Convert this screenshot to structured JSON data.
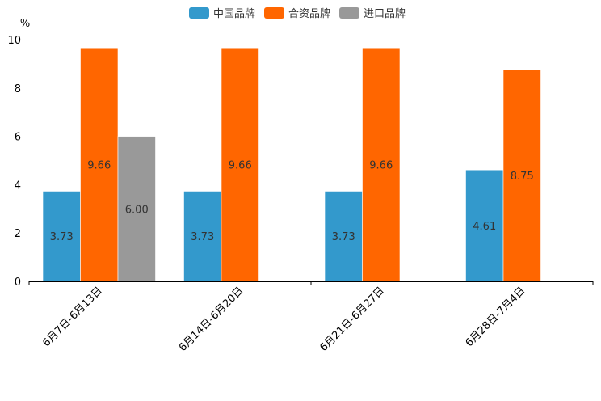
{
  "chart_data": {
    "type": "bar",
    "title": "",
    "xlabel": "",
    "ylabel": "%",
    "ylim": [
      0,
      10
    ],
    "yticks": [
      0,
      2,
      4,
      6,
      8,
      10
    ],
    "categories": [
      "6月7日-6月13日",
      "6月14日-6月20日",
      "6月21日-6月27日",
      "6月28日-7月4日"
    ],
    "series": [
      {
        "name": "中国品牌",
        "color": "#3399cc",
        "values": [
          3.73,
          3.73,
          3.73,
          4.61
        ]
      },
      {
        "name": "合资品牌",
        "color": "#ff6600",
        "values": [
          9.66,
          9.66,
          9.66,
          8.75
        ]
      },
      {
        "name": "进口品牌",
        "color": "#999999",
        "values": [
          6.0,
          null,
          null,
          null
        ]
      }
    ],
    "legend_position": "top-center",
    "grid": false
  }
}
